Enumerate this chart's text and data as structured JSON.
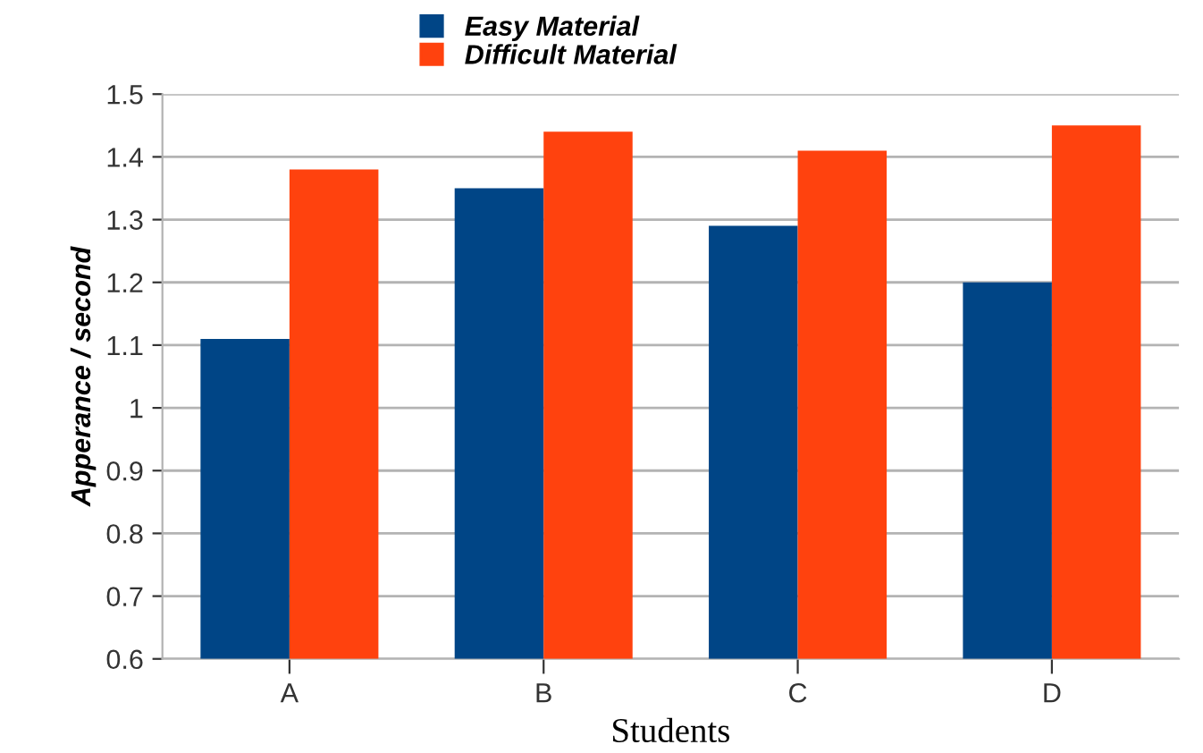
{
  "chart_data": {
    "type": "bar",
    "xlabel": "Students",
    "ylabel": "Apperance / second",
    "categories": [
      "A",
      "B",
      "C",
      "D"
    ],
    "series": [
      {
        "name": "Easy Material",
        "color": "#004586",
        "values": [
          1.11,
          1.35,
          1.29,
          1.2
        ]
      },
      {
        "name": "Difficult Material",
        "color": "#ff420e",
        "values": [
          1.38,
          1.44,
          1.41,
          1.45
        ]
      }
    ],
    "ylim": [
      0.6,
      1.5
    ],
    "yticks": [
      0.6,
      0.7,
      0.8,
      0.9,
      1,
      1.1,
      1.2,
      1.3,
      1.4,
      1.5
    ],
    "grid": "y",
    "legend": "top left"
  }
}
